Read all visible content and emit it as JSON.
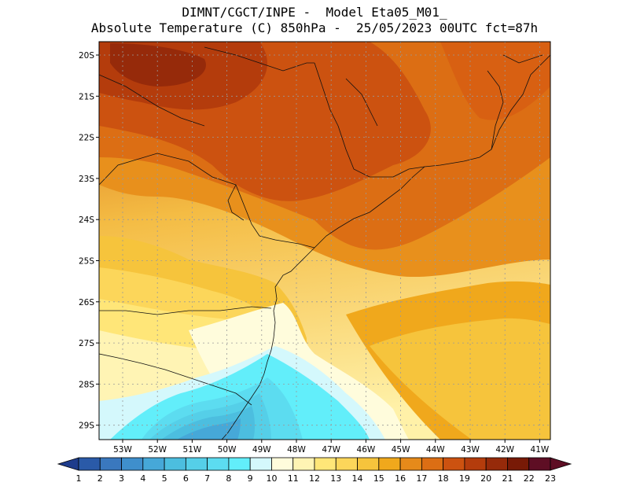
{
  "title": {
    "line1": "DIMNT/CGCT/INPE -  Model Eta05_M01_",
    "line2": "Absolute Temperature (C) 850hPa -  25/05/2023 00UTC fct=87h"
  },
  "map": {
    "lat_labels": [
      "20S",
      "21S",
      "22S",
      "23S",
      "24S",
      "25S",
      "26S",
      "27S",
      "28S",
      "29S"
    ],
    "lon_labels": [
      "53W",
      "52W",
      "51W",
      "50W",
      "49W",
      "48W",
      "47W",
      "46W",
      "45W",
      "44W",
      "43W",
      "42W",
      "41W"
    ]
  },
  "colorbar": {
    "labels": [
      "1",
      "2",
      "3",
      "4",
      "5",
      "6",
      "7",
      "8",
      "9",
      "10",
      "11",
      "12",
      "13",
      "14",
      "15",
      "16",
      "17",
      "18",
      "19",
      "20",
      "21",
      "22",
      "23"
    ],
    "colors": [
      "#1e3c8c",
      "#2a5aa8",
      "#3a78be",
      "#3f8fcc",
      "#46a8d8",
      "#4cbedf",
      "#55cfe8",
      "#5cdcf0",
      "#62eefa",
      "#d4f8fc",
      "#fffcdc",
      "#fff4b4",
      "#ffe678",
      "#fcd65a",
      "#f6c43c",
      "#f0a81c",
      "#e68a1a",
      "#dc6e14",
      "#cc5210",
      "#b43c0c",
      "#962a0a",
      "#781a06",
      "#5e0e24"
    ]
  }
}
